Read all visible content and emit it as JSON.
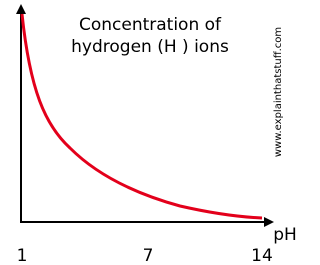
{
  "title_lines": [
    "Concentration of",
    "hydrogen (H ) ions"
  ],
  "credit": "www.explainthatstuff.com",
  "x_axis_label": "pH",
  "x_tick_labels": [
    "1",
    "7",
    "14"
  ]
}
